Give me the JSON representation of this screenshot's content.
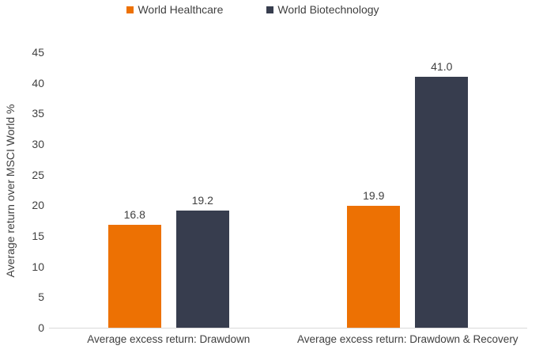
{
  "chart_data": {
    "type": "bar",
    "title": "",
    "categories": [
      "Average excess return: Drawdown",
      "Average excess return: Drawdown & Recovery"
    ],
    "series": [
      {
        "name": "World Healthcare",
        "color": "#ED7103",
        "values": [
          16.8,
          19.9
        ]
      },
      {
        "name": "World Biotechnology",
        "color": "#373D4E",
        "values": [
          19.2,
          41.0
        ]
      }
    ],
    "data_labels": [
      [
        "16.8",
        "19.9"
      ],
      [
        "19.2",
        "41.0"
      ]
    ],
    "xlabel": "",
    "ylabel": "Average return over MSCI World %",
    "ylim": [
      0,
      45
    ],
    "yticks": [
      0,
      5,
      10,
      15,
      20,
      25,
      30,
      35,
      40,
      45
    ],
    "grid": false,
    "legend_position": "top"
  },
  "colors": {
    "text": "#404040",
    "axis_line": "#d9d9d9",
    "background": "#ffffff"
  }
}
